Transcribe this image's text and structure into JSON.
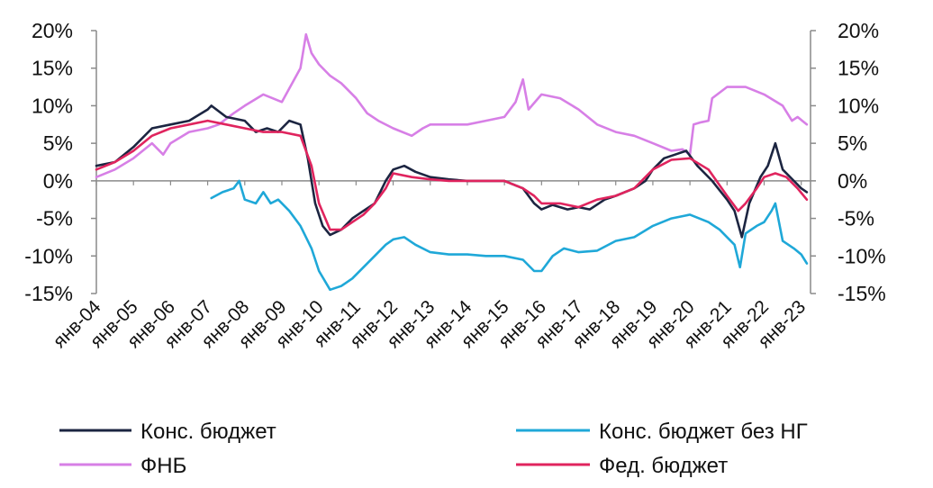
{
  "chart_data": {
    "type": "line",
    "title": "",
    "xlabel": "",
    "ylabel": "",
    "ylim": [
      -15,
      20
    ],
    "y_ticks": [
      "20%",
      "15%",
      "10%",
      "5%",
      "0%",
      "-5%",
      "-10%",
      "-15%"
    ],
    "y_ticks_right": [
      "20%",
      "15%",
      "10%",
      "5%",
      "0%",
      "-5%",
      "-10%",
      "-15%"
    ],
    "x_range": [
      2004.0,
      2023.25
    ],
    "x_tick_labels": [
      "янв-04",
      "янв-05",
      "янв-06",
      "янв-07",
      "янв-08",
      "янв-09",
      "янв-10",
      "янв-11",
      "янв-12",
      "янв-13",
      "янв-14",
      "янв-15",
      "янв-16",
      "янв-17",
      "янв-18",
      "янв-19",
      "янв-20",
      "янв-21",
      "янв-22",
      "янв-23"
    ],
    "grid": false,
    "legend_position": "bottom",
    "series": [
      {
        "name": "Конс. бюджет",
        "color": "#1c2541",
        "points": [
          [
            2004.0,
            2
          ],
          [
            2004.5,
            2.5
          ],
          [
            2005.0,
            4.5
          ],
          [
            2005.5,
            7
          ],
          [
            2006.0,
            7.5
          ],
          [
            2006.5,
            8
          ],
          [
            2007.0,
            9.5
          ],
          [
            2007.1,
            10
          ],
          [
            2007.5,
            8.5
          ],
          [
            2008.0,
            8
          ],
          [
            2008.3,
            6.5
          ],
          [
            2008.6,
            7
          ],
          [
            2008.9,
            6.5
          ],
          [
            2009.2,
            8
          ],
          [
            2009.5,
            7.5
          ],
          [
            2009.7,
            3
          ],
          [
            2009.9,
            -3
          ],
          [
            2010.1,
            -6
          ],
          [
            2010.3,
            -7.2
          ],
          [
            2010.6,
            -6.5
          ],
          [
            2010.9,
            -5
          ],
          [
            2011.2,
            -4
          ],
          [
            2011.5,
            -3
          ],
          [
            2011.8,
            0
          ],
          [
            2012.0,
            1.5
          ],
          [
            2012.3,
            2
          ],
          [
            2012.6,
            1.2
          ],
          [
            2013.0,
            0.5
          ],
          [
            2013.5,
            0.2
          ],
          [
            2014.0,
            0
          ],
          [
            2014.5,
            0
          ],
          [
            2015.0,
            0
          ],
          [
            2015.5,
            -1
          ],
          [
            2015.8,
            -3
          ],
          [
            2016.0,
            -3.8
          ],
          [
            2016.3,
            -3.2
          ],
          [
            2016.7,
            -3.8
          ],
          [
            2017.0,
            -3.5
          ],
          [
            2017.3,
            -3.8
          ],
          [
            2017.7,
            -2.5
          ],
          [
            2018.0,
            -2
          ],
          [
            2018.5,
            -1
          ],
          [
            2018.8,
            0
          ],
          [
            2019.0,
            1.5
          ],
          [
            2019.3,
            3
          ],
          [
            2019.6,
            3.5
          ],
          [
            2019.9,
            4
          ],
          [
            2020.2,
            2
          ],
          [
            2020.6,
            0
          ],
          [
            2021.0,
            -2.5
          ],
          [
            2021.2,
            -4
          ],
          [
            2021.4,
            -7.5
          ],
          [
            2021.6,
            -3
          ],
          [
            2021.9,
            0.5
          ],
          [
            2022.1,
            2
          ],
          [
            2022.3,
            5
          ],
          [
            2022.5,
            1.5
          ],
          [
            2022.8,
            0
          ],
          [
            2023.0,
            -1
          ],
          [
            2023.15,
            -1.5
          ]
        ]
      },
      {
        "name": "Конс. бюджет без НГ",
        "color": "#1fa8d8",
        "points": [
          [
            2007.1,
            -2.3
          ],
          [
            2007.4,
            -1.5
          ],
          [
            2007.7,
            -1
          ],
          [
            2007.85,
            0
          ],
          [
            2008.0,
            -2.5
          ],
          [
            2008.3,
            -3
          ],
          [
            2008.5,
            -1.5
          ],
          [
            2008.7,
            -3
          ],
          [
            2008.9,
            -2.5
          ],
          [
            2009.2,
            -4
          ],
          [
            2009.5,
            -6
          ],
          [
            2009.8,
            -9
          ],
          [
            2010.0,
            -12
          ],
          [
            2010.3,
            -14.5
          ],
          [
            2010.6,
            -14
          ],
          [
            2010.9,
            -13
          ],
          [
            2011.2,
            -11.5
          ],
          [
            2011.5,
            -10
          ],
          [
            2011.8,
            -8.5
          ],
          [
            2012.0,
            -7.8
          ],
          [
            2012.3,
            -7.5
          ],
          [
            2012.6,
            -8.5
          ],
          [
            2013.0,
            -9.5
          ],
          [
            2013.5,
            -9.8
          ],
          [
            2014.0,
            -9.8
          ],
          [
            2014.5,
            -10
          ],
          [
            2015.0,
            -10
          ],
          [
            2015.5,
            -10.5
          ],
          [
            2015.8,
            -12
          ],
          [
            2016.0,
            -12
          ],
          [
            2016.3,
            -10
          ],
          [
            2016.6,
            -9
          ],
          [
            2017.0,
            -9.5
          ],
          [
            2017.5,
            -9.3
          ],
          [
            2018.0,
            -8
          ],
          [
            2018.5,
            -7.5
          ],
          [
            2019.0,
            -6
          ],
          [
            2019.5,
            -5
          ],
          [
            2020.0,
            -4.5
          ],
          [
            2020.5,
            -5.5
          ],
          [
            2020.8,
            -6.5
          ],
          [
            2021.0,
            -7.5
          ],
          [
            2021.2,
            -8.5
          ],
          [
            2021.35,
            -11.5
          ],
          [
            2021.5,
            -7
          ],
          [
            2021.8,
            -6
          ],
          [
            2022.0,
            -5.5
          ],
          [
            2022.2,
            -4
          ],
          [
            2022.3,
            -3
          ],
          [
            2022.5,
            -8
          ],
          [
            2022.8,
            -9
          ],
          [
            2023.0,
            -9.8
          ],
          [
            2023.15,
            -11
          ]
        ]
      },
      {
        "name": "ФНБ",
        "color": "#d77fe6",
        "points": [
          [
            2004.0,
            0.5
          ],
          [
            2004.5,
            1.5
          ],
          [
            2005.0,
            3
          ],
          [
            2005.5,
            5
          ],
          [
            2005.8,
            3.5
          ],
          [
            2006.0,
            5
          ],
          [
            2006.5,
            6.5
          ],
          [
            2007.0,
            7
          ],
          [
            2007.3,
            7.5
          ],
          [
            2007.7,
            9
          ],
          [
            2008.0,
            10
          ],
          [
            2008.5,
            11.5
          ],
          [
            2009.0,
            10.5
          ],
          [
            2009.5,
            15
          ],
          [
            2009.65,
            19.5
          ],
          [
            2009.8,
            17
          ],
          [
            2010.0,
            15.5
          ],
          [
            2010.3,
            14
          ],
          [
            2010.6,
            13
          ],
          [
            2011.0,
            11
          ],
          [
            2011.3,
            9
          ],
          [
            2011.6,
            8
          ],
          [
            2012.0,
            7
          ],
          [
            2012.5,
            6
          ],
          [
            2012.8,
            7
          ],
          [
            2013.0,
            7.5
          ],
          [
            2013.5,
            7.5
          ],
          [
            2014.0,
            7.5
          ],
          [
            2014.5,
            8
          ],
          [
            2015.0,
            8.5
          ],
          [
            2015.3,
            10.5
          ],
          [
            2015.5,
            13.5
          ],
          [
            2015.65,
            9.5
          ],
          [
            2016.0,
            11.5
          ],
          [
            2016.5,
            11
          ],
          [
            2017.0,
            9.5
          ],
          [
            2017.5,
            7.5
          ],
          [
            2018.0,
            6.5
          ],
          [
            2018.5,
            6
          ],
          [
            2019.0,
            5
          ],
          [
            2019.5,
            4
          ],
          [
            2019.8,
            4.2
          ],
          [
            2020.0,
            3.5
          ],
          [
            2020.1,
            7.5
          ],
          [
            2020.3,
            7.8
          ],
          [
            2020.5,
            8
          ],
          [
            2020.6,
            11
          ],
          [
            2021.0,
            12.5
          ],
          [
            2021.5,
            12.5
          ],
          [
            2022.0,
            11.5
          ],
          [
            2022.5,
            10
          ],
          [
            2022.75,
            8
          ],
          [
            2022.9,
            8.5
          ],
          [
            2023.15,
            7.5
          ]
        ]
      },
      {
        "name": "Фед. бюджет",
        "color": "#e0245e",
        "points": [
          [
            2004.0,
            1.5
          ],
          [
            2004.5,
            2.5
          ],
          [
            2005.0,
            4
          ],
          [
            2005.5,
            6
          ],
          [
            2006.0,
            7
          ],
          [
            2006.5,
            7.5
          ],
          [
            2007.0,
            8
          ],
          [
            2007.5,
            7.5
          ],
          [
            2008.0,
            7
          ],
          [
            2008.5,
            6.5
          ],
          [
            2009.0,
            6.5
          ],
          [
            2009.5,
            6
          ],
          [
            2009.8,
            2
          ],
          [
            2010.0,
            -3
          ],
          [
            2010.3,
            -6.5
          ],
          [
            2010.6,
            -6.5
          ],
          [
            2010.9,
            -5.5
          ],
          [
            2011.2,
            -4.5
          ],
          [
            2011.5,
            -3
          ],
          [
            2011.8,
            -1
          ],
          [
            2012.0,
            1
          ],
          [
            2012.5,
            0.5
          ],
          [
            2013.0,
            0.2
          ],
          [
            2013.5,
            0
          ],
          [
            2014.0,
            0
          ],
          [
            2014.5,
            0
          ],
          [
            2015.0,
            0
          ],
          [
            2015.5,
            -1
          ],
          [
            2015.8,
            -2
          ],
          [
            2016.0,
            -3
          ],
          [
            2016.5,
            -3
          ],
          [
            2017.0,
            -3.5
          ],
          [
            2017.5,
            -2.5
          ],
          [
            2018.0,
            -2
          ],
          [
            2018.5,
            -1
          ],
          [
            2019.0,
            1.5
          ],
          [
            2019.5,
            2.8
          ],
          [
            2020.0,
            3
          ],
          [
            2020.5,
            1.5
          ],
          [
            2021.0,
            -2
          ],
          [
            2021.3,
            -4
          ],
          [
            2021.5,
            -3
          ],
          [
            2021.8,
            -1
          ],
          [
            2022.0,
            0.5
          ],
          [
            2022.3,
            1
          ],
          [
            2022.6,
            0.5
          ],
          [
            2022.9,
            -1
          ],
          [
            2023.15,
            -2.5
          ]
        ]
      }
    ]
  }
}
